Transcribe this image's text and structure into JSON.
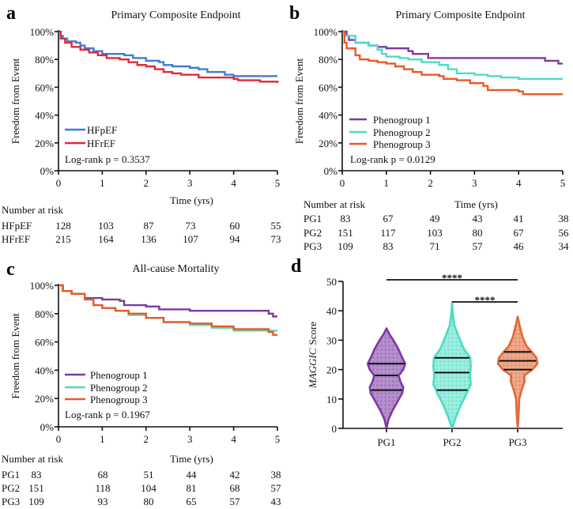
{
  "chart_data": [
    {
      "panel": "a",
      "type": "line",
      "title": "Primary Composite Endpoint",
      "xlabel": "Time (yrs)",
      "ylabel": "Freedom from Event",
      "xlim": [
        0,
        5
      ],
      "ylim": [
        0,
        100
      ],
      "xticks": [
        "0",
        "1",
        "2",
        "3",
        "4",
        "5"
      ],
      "yticks": [
        "0%",
        "20%",
        "40%",
        "60%",
        "80%",
        "100%"
      ],
      "annotation": "Log-rank p = 0.3537",
      "series": [
        {
          "name": "HFpEF",
          "color": "#3b7fd4",
          "points": [
            [
              0,
              100
            ],
            [
              0.05,
              97
            ],
            [
              0.1,
              95
            ],
            [
              0.2,
              93
            ],
            [
              0.4,
              92
            ],
            [
              0.5,
              90
            ],
            [
              0.6,
              88
            ],
            [
              0.8,
              86
            ],
            [
              1,
              84
            ],
            [
              1.5,
              83
            ],
            [
              1.7,
              81
            ],
            [
              2,
              79
            ],
            [
              2.3,
              78
            ],
            [
              2.4,
              76
            ],
            [
              2.6,
              75
            ],
            [
              3,
              74
            ],
            [
              3.2,
              73
            ],
            [
              3.4,
              71
            ],
            [
              3.8,
              69
            ],
            [
              4,
              68
            ],
            [
              5,
              68
            ]
          ]
        },
        {
          "name": "HFrEF",
          "color": "#e0283a",
          "points": [
            [
              0,
              100
            ],
            [
              0.05,
              95
            ],
            [
              0.15,
              92
            ],
            [
              0.3,
              89
            ],
            [
              0.5,
              87
            ],
            [
              0.7,
              85
            ],
            [
              0.9,
              83
            ],
            [
              1.1,
              81
            ],
            [
              1.4,
              80
            ],
            [
              1.6,
              78
            ],
            [
              1.8,
              76
            ],
            [
              2,
              75
            ],
            [
              2.2,
              73
            ],
            [
              2.4,
              71
            ],
            [
              2.6,
              70
            ],
            [
              2.8,
              69
            ],
            [
              3.2,
              67
            ],
            [
              4,
              66
            ],
            [
              4.1,
              65
            ],
            [
              4.6,
              64
            ],
            [
              5,
              63
            ]
          ]
        }
      ],
      "risk_table": {
        "header": "Number at risk",
        "rows": [
          {
            "label": "HFpEF",
            "values": [
              "128",
              "103",
              "87",
              "73",
              "60",
              "55"
            ]
          },
          {
            "label": "HFrEF",
            "values": [
              "215",
              "164",
              "136",
              "107",
              "94",
              "73"
            ]
          }
        ]
      }
    },
    {
      "panel": "b",
      "type": "line",
      "title": "Primary Composite Endpoint",
      "xlabel": "Time (yrs)",
      "ylabel": "Freedom from Event",
      "xlim": [
        0,
        5
      ],
      "ylim": [
        0,
        100
      ],
      "xticks": [
        "0",
        "1",
        "2",
        "3",
        "4",
        "5"
      ],
      "yticks": [
        "0%",
        "20%",
        "40%",
        "60%",
        "80%",
        "100%"
      ],
      "annotation": "Log-rank p = 0.0129",
      "series": [
        {
          "name": "Phenogroup 1",
          "color": "#7b3aa3",
          "points": [
            [
              0,
              100
            ],
            [
              0.1,
              97
            ],
            [
              0.15,
              94
            ],
            [
              0.3,
              92
            ],
            [
              0.6,
              90
            ],
            [
              0.8,
              89
            ],
            [
              1,
              88
            ],
            [
              1.5,
              86
            ],
            [
              1.6,
              84
            ],
            [
              1.95,
              81
            ],
            [
              4.55,
              81
            ],
            [
              4.6,
              79
            ],
            [
              4.9,
              77
            ],
            [
              5,
              77
            ]
          ]
        },
        {
          "name": "Phenogroup 2",
          "color": "#4edcc6",
          "points": [
            [
              0,
              100
            ],
            [
              0.05,
              97
            ],
            [
              0.3,
              92
            ],
            [
              0.6,
              90
            ],
            [
              0.8,
              87
            ],
            [
              0.9,
              84
            ],
            [
              1,
              82
            ],
            [
              1.3,
              81
            ],
            [
              1.5,
              80
            ],
            [
              1.8,
              78
            ],
            [
              2.2,
              76
            ],
            [
              2.4,
              73
            ],
            [
              2.6,
              70
            ],
            [
              3,
              69
            ],
            [
              3.3,
              68
            ],
            [
              3.6,
              67
            ],
            [
              4,
              66
            ],
            [
              5,
              66
            ]
          ]
        },
        {
          "name": "Phenogroup 3",
          "color": "#e85a26",
          "points": [
            [
              0,
              100
            ],
            [
              0.05,
              92
            ],
            [
              0.1,
              88
            ],
            [
              0.3,
              83
            ],
            [
              0.4,
              80
            ],
            [
              0.6,
              79
            ],
            [
              0.8,
              78
            ],
            [
              1,
              77
            ],
            [
              1.2,
              75
            ],
            [
              1.4,
              73
            ],
            [
              1.6,
              71
            ],
            [
              1.8,
              69
            ],
            [
              2.2,
              68
            ],
            [
              2.3,
              66
            ],
            [
              2.6,
              65
            ],
            [
              2.9,
              63
            ],
            [
              3.2,
              61
            ],
            [
              3.3,
              58
            ],
            [
              4,
              57
            ],
            [
              4.1,
              55
            ],
            [
              5,
              55
            ]
          ]
        }
      ],
      "risk_table": {
        "header": "Number at risk",
        "rows": [
          {
            "label": "PG1",
            "values": [
              "83",
              "67",
              "49",
              "43",
              "41",
              "38"
            ]
          },
          {
            "label": "PG2",
            "values": [
              "151",
              "117",
              "103",
              "80",
              "67",
              "56"
            ]
          },
          {
            "label": "PG3",
            "values": [
              "109",
              "83",
              "71",
              "57",
              "46",
              "34"
            ]
          }
        ]
      }
    },
    {
      "panel": "c",
      "type": "line",
      "title": "All-cause Mortality",
      "xlabel": "Time (yrs)",
      "ylabel": "Freedom from Event",
      "xlim": [
        0,
        5
      ],
      "ylim": [
        0,
        100
      ],
      "xticks": [
        "0",
        "1",
        "2",
        "3",
        "4",
        "5"
      ],
      "yticks": [
        "0%",
        "20%",
        "40%",
        "60%",
        "80%",
        "100%"
      ],
      "annotation": "Log-rank p = 0.1967",
      "series": [
        {
          "name": "Phenogroup 1",
          "color": "#7b3aa3",
          "points": [
            [
              0,
              100
            ],
            [
              0.1,
              96
            ],
            [
              0.3,
              94
            ],
            [
              0.6,
              91
            ],
            [
              1,
              90
            ],
            [
              1.4,
              89
            ],
            [
              1.5,
              86
            ],
            [
              2,
              85
            ],
            [
              2.3,
              83
            ],
            [
              3,
              82
            ],
            [
              4.8,
              80
            ],
            [
              4.9,
              78
            ],
            [
              5,
              78
            ]
          ]
        },
        {
          "name": "Phenogroup 2",
          "color": "#4edcc6",
          "points": [
            [
              0,
              100
            ],
            [
              0.1,
              96
            ],
            [
              0.3,
              94
            ],
            [
              0.6,
              90
            ],
            [
              0.8,
              86
            ],
            [
              1,
              84
            ],
            [
              1.3,
              82
            ],
            [
              1.6,
              79
            ],
            [
              2,
              77
            ],
            [
              2.4,
              74
            ],
            [
              3,
              72
            ],
            [
              3.5,
              70
            ],
            [
              4,
              68
            ],
            [
              5,
              68
            ]
          ]
        },
        {
          "name": "Phenogroup 3",
          "color": "#e85a26",
          "points": [
            [
              0,
              100
            ],
            [
              0.1,
              96
            ],
            [
              0.3,
              94
            ],
            [
              0.6,
              90
            ],
            [
              0.8,
              86
            ],
            [
              1,
              84
            ],
            [
              1.3,
              82
            ],
            [
              1.6,
              80
            ],
            [
              2,
              77
            ],
            [
              2.4,
              74
            ],
            [
              3,
              73
            ],
            [
              3.5,
              71
            ],
            [
              4,
              69
            ],
            [
              4.8,
              67
            ],
            [
              4.9,
              65
            ],
            [
              5,
              65
            ]
          ]
        }
      ],
      "risk_table": {
        "header": "Number at risk",
        "rows": [
          {
            "label": "PG1",
            "values": [
              "83",
              "68",
              "51",
              "44",
              "42",
              "38"
            ]
          },
          {
            "label": "PG2",
            "values": [
              "151",
              "118",
              "104",
              "81",
              "68",
              "57"
            ]
          },
          {
            "label": "PG3",
            "values": [
              "109",
              "93",
              "80",
              "65",
              "57",
              "43"
            ]
          }
        ]
      }
    },
    {
      "panel": "d",
      "type": "violin",
      "ylabel_italic": "MAGGIC",
      "ylabel_rest": "Score",
      "ylim": [
        0,
        50
      ],
      "yticks": [
        "0",
        "10",
        "20",
        "30",
        "40",
        "50"
      ],
      "categories": [
        "PG1",
        "PG2",
        "PG3"
      ],
      "groups": [
        {
          "name": "PG1",
          "color": "#7b3aa3",
          "fill": "#b48fcc",
          "q1": 13,
          "median": 18,
          "q3": 22,
          "min": 0,
          "max": 34,
          "density": [
            [
              0,
              0
            ],
            [
              3,
              0.1
            ],
            [
              6,
              0.3
            ],
            [
              9,
              0.55
            ],
            [
              12,
              0.8
            ],
            [
              14,
              0.85
            ],
            [
              16,
              0.7
            ],
            [
              18,
              0.62
            ],
            [
              20,
              0.85
            ],
            [
              22,
              0.95
            ],
            [
              24,
              0.8
            ],
            [
              27,
              0.6
            ],
            [
              30,
              0.35
            ],
            [
              32,
              0.15
            ],
            [
              34,
              0
            ]
          ]
        },
        {
          "name": "PG2",
          "color": "#4edcc6",
          "fill": "#9beee0",
          "q1": 13,
          "median": 19,
          "q3": 24,
          "min": 0,
          "max": 43,
          "density": [
            [
              0,
              0
            ],
            [
              4,
              0.2
            ],
            [
              8,
              0.45
            ],
            [
              12,
              0.75
            ],
            [
              15,
              0.95
            ],
            [
              18,
              0.9
            ],
            [
              21,
              0.95
            ],
            [
              24,
              0.92
            ],
            [
              27,
              0.6
            ],
            [
              31,
              0.35
            ],
            [
              35,
              0.12
            ],
            [
              39,
              0.04
            ],
            [
              43,
              0
            ]
          ]
        },
        {
          "name": "PG3",
          "color": "#e06a3a",
          "fill": "#f0a888",
          "q1": 20,
          "median": 23,
          "q3": 26,
          "min": 0,
          "max": 38,
          "density": [
            [
              0,
              0
            ],
            [
              5,
              0.05
            ],
            [
              10,
              0.08
            ],
            [
              13,
              0.2
            ],
            [
              16,
              0.35
            ],
            [
              18,
              0.33
            ],
            [
              20,
              0.75
            ],
            [
              22,
              1.0
            ],
            [
              24,
              0.95
            ],
            [
              26,
              0.72
            ],
            [
              28,
              0.45
            ],
            [
              31,
              0.25
            ],
            [
              35,
              0.1
            ],
            [
              38,
              0
            ]
          ]
        }
      ],
      "significance": [
        {
          "from": "PG1",
          "to": "PG3",
          "label": "****"
        },
        {
          "from": "PG2",
          "to": "PG3",
          "label": "****"
        }
      ]
    }
  ]
}
